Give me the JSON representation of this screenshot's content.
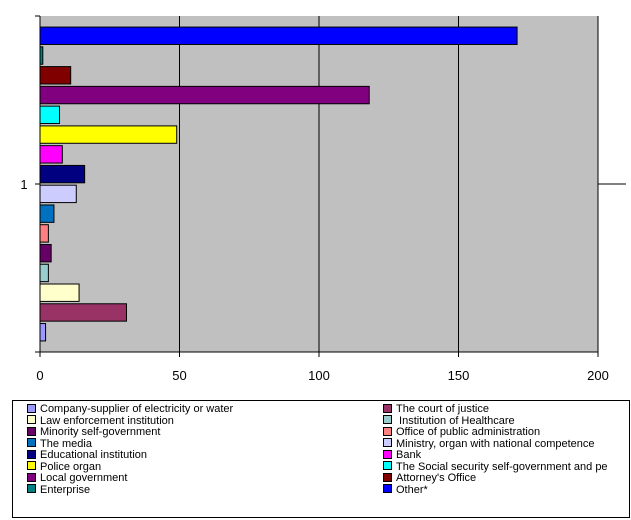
{
  "chart_data": {
    "type": "bar",
    "orientation": "horizontal",
    "title": "",
    "xlabel": "",
    "ylabel": "",
    "category_tick_label": "1",
    "xlim": [
      0,
      200
    ],
    "x_ticks": [
      "0",
      "50",
      "100",
      "150",
      "200"
    ],
    "grid": "vertical",
    "legend_placement": "bottom",
    "plot_background": "#c0c0c0",
    "series": [
      {
        "name": "Company-supplier of electricity or water",
        "value": 2,
        "color": "#9999ff"
      },
      {
        "name": "The court of justice",
        "value": 31,
        "color": "#993366"
      },
      {
        "name": "Law enforcement institution",
        "value": 14,
        "color": "#ffffcc"
      },
      {
        "name": " Institution of Healthcare",
        "value": 3,
        "color": "#99cccc"
      },
      {
        "name": "Minority self-government",
        "value": 4,
        "color": "#660066"
      },
      {
        "name": "Office of public administration",
        "value": 3,
        "color": "#ff8080"
      },
      {
        "name": "The media",
        "value": 5,
        "color": "#0070c0"
      },
      {
        "name": "Ministry, organ with national competence",
        "value": 13,
        "color": "#ccccff"
      },
      {
        "name": "Educational institution",
        "value": 16,
        "color": "#000080"
      },
      {
        "name": "Bank",
        "value": 8,
        "color": "#ff00ff"
      },
      {
        "name": "Police organ",
        "value": 49,
        "color": "#ffff00"
      },
      {
        "name": "The Social security self-government and pe",
        "value": 7,
        "color": "#00ffff"
      },
      {
        "name": "Local government",
        "value": 118,
        "color": "#800080"
      },
      {
        "name": "Attorney's Office",
        "value": 11,
        "color": "#800000"
      },
      {
        "name": "Enterprise",
        "value": 1,
        "color": "#008080"
      },
      {
        "name": "Other*",
        "value": 171,
        "color": "#0000ff"
      }
    ]
  }
}
